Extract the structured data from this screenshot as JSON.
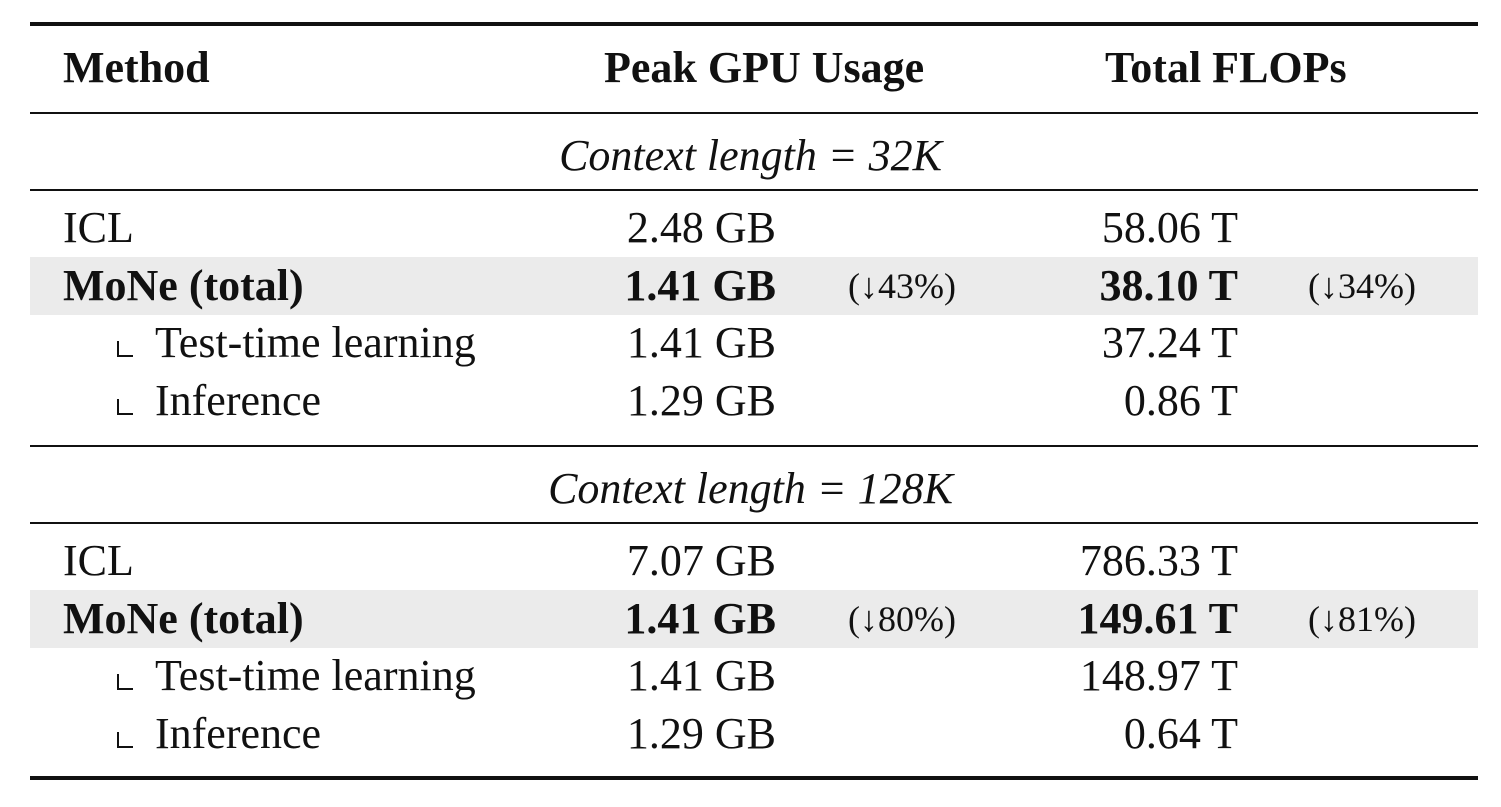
{
  "header": {
    "method": "Method",
    "gpu": "Peak GPU Usage",
    "flops": "Total FLOPs"
  },
  "sections": [
    {
      "title": "Context length = 32K",
      "rows": [
        {
          "method": "ICL",
          "gpu": "2.48 GB",
          "flops": "58.06 T"
        },
        {
          "method": "MoNe (total)",
          "gpu": "1.41 GB",
          "gpu_change": "(↓43%)",
          "flops": "38.10 T",
          "flops_change": "(↓34%)"
        },
        {
          "method": "Test-time learning",
          "gpu": "1.41 GB",
          "flops": "37.24 T"
        },
        {
          "method": "Inference",
          "gpu": "1.29 GB",
          "flops": "0.86 T"
        }
      ]
    },
    {
      "title": "Context length = 128K",
      "rows": [
        {
          "method": "ICL",
          "gpu": "7.07 GB",
          "flops": "786.33 T"
        },
        {
          "method": "MoNe (total)",
          "gpu": "1.41 GB",
          "gpu_change": "(↓80%)",
          "flops": "149.61 T",
          "flops_change": "(↓81%)"
        },
        {
          "method": "Test-time learning",
          "gpu": "1.41 GB",
          "flops": "148.97 T"
        },
        {
          "method": "Inference",
          "gpu": "1.29 GB",
          "flops": "0.64 T"
        }
      ]
    }
  ]
}
